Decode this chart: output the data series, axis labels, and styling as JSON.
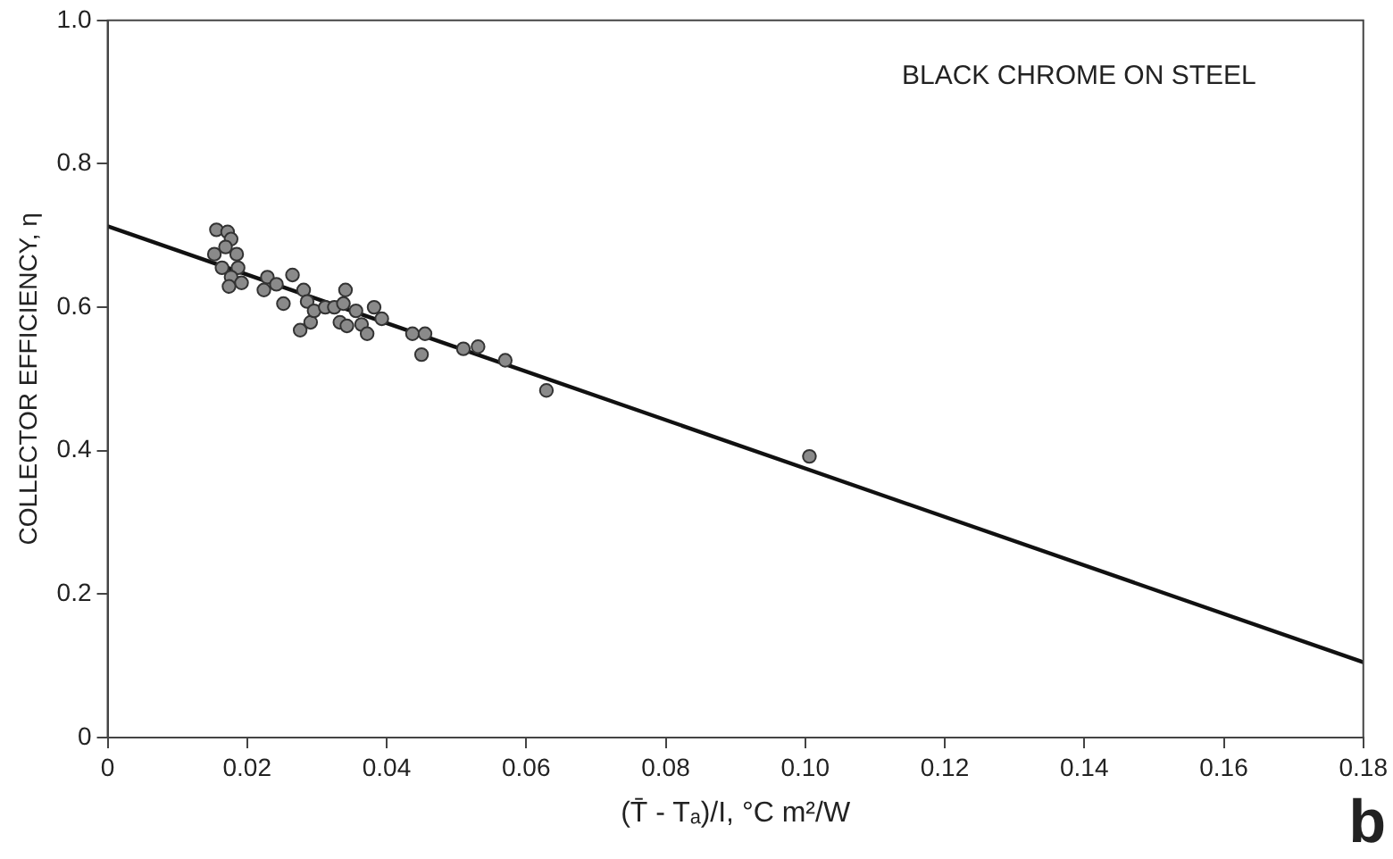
{
  "chart_data": {
    "type": "scatter",
    "xlabel": "(T̄ - Tₐ)/I, °C m²/W",
    "ylabel": "COLLECTOR EFFICIENCY, η",
    "annotations": [
      "BLACK CHROME ON STEEL",
      "b"
    ],
    "xlim": [
      0,
      0.18
    ],
    "xticks": [
      0,
      0.02,
      0.04,
      0.06,
      0.08,
      {
        "value": 0.1,
        "label": "0.10"
      },
      0.12,
      0.14,
      0.16,
      0.18
    ],
    "ylim": [
      0,
      1
    ],
    "yticks": [
      0,
      0.2,
      0.4,
      0.6,
      0.8,
      {
        "value": 1,
        "label": "1.0"
      }
    ],
    "grid": false,
    "legend": false,
    "marker": "circle",
    "series": [
      {
        "color": "#8a8a8a",
        "x": [
          0.0156,
          0.0172,
          0.0177,
          0.0169,
          0.0185,
          0.0153,
          0.0164,
          0.0187,
          0.0177,
          0.0174,
          0.0192,
          0.0229,
          0.0224,
          0.0242,
          0.0265,
          0.0252,
          0.0281,
          0.0286,
          0.0276,
          0.0291,
          0.0296,
          0.0312,
          0.0325,
          0.0341,
          0.0338,
          0.0333,
          0.0343,
          0.0356,
          0.0364,
          0.0372,
          0.0382,
          0.0393,
          0.0437,
          0.0455,
          0.045,
          0.051,
          0.0531,
          0.057,
          0.0629,
          0.1006
        ],
        "values": [
          0.708,
          0.705,
          0.695,
          0.684,
          0.674,
          0.674,
          0.655,
          0.655,
          0.642,
          0.629,
          0.634,
          0.642,
          0.624,
          0.632,
          0.645,
          0.605,
          0.624,
          0.608,
          0.568,
          0.579,
          0.595,
          0.6,
          0.6,
          0.624,
          0.605,
          0.579,
          0.574,
          0.595,
          0.576,
          0.563,
          0.6,
          0.584,
          0.563,
          0.563,
          0.534,
          0.542,
          0.545,
          0.526,
          0.484,
          0.392
        ]
      },
      {
        "type": "line",
        "color": "#111111",
        "line_style": "solid",
        "marker": "none",
        "x": [
          0,
          0.18
        ],
        "values": [
          0.713,
          0.105
        ]
      }
    ]
  }
}
